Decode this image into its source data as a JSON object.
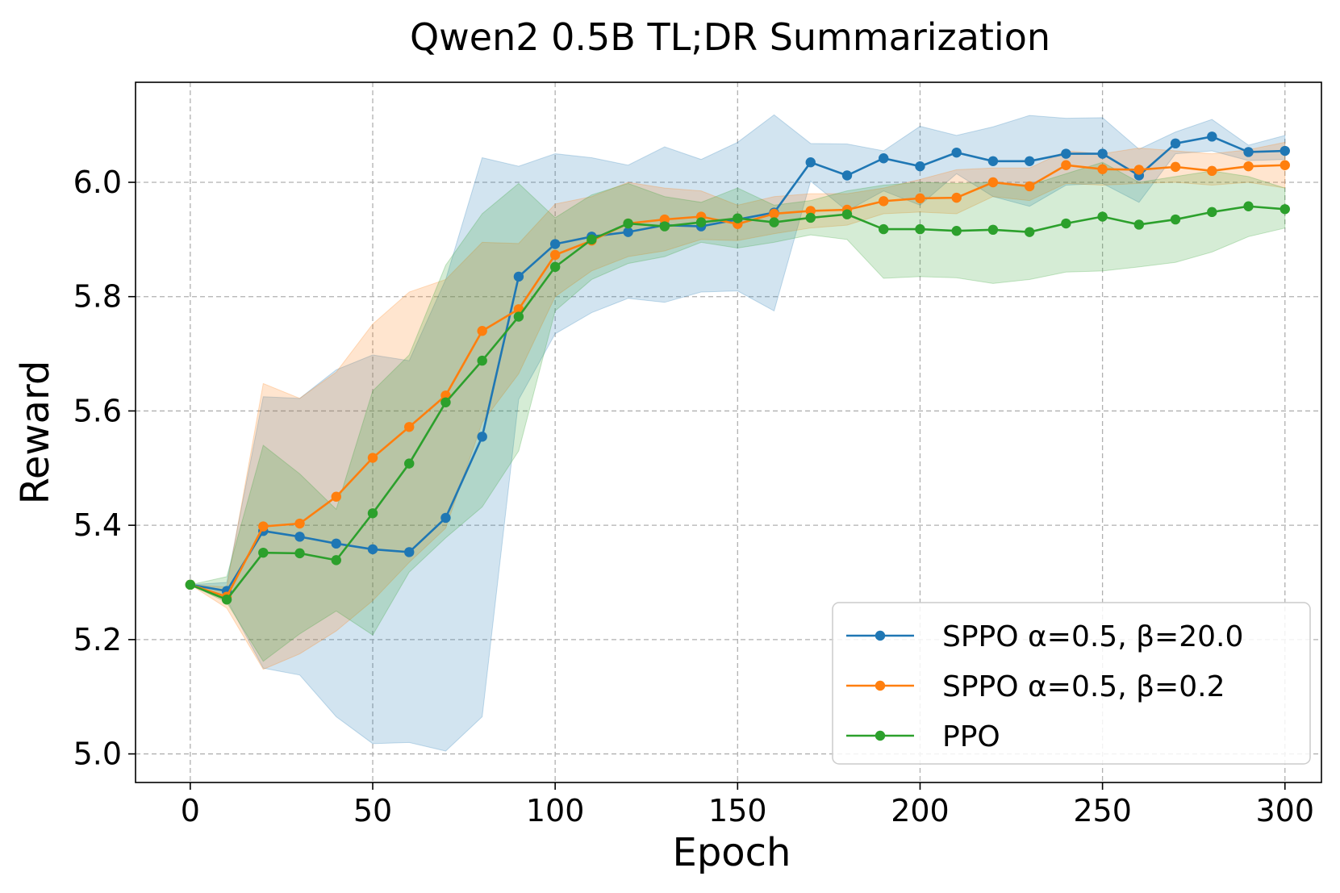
{
  "chart_data": {
    "type": "line",
    "title": "Qwen2 0.5B TL;DR Summarization",
    "xlabel": "Epoch",
    "ylabel": "Reward",
    "xlim": [
      -15,
      310
    ],
    "ylim": [
      4.95,
      6.175
    ],
    "xticks": [
      0,
      50,
      100,
      150,
      200,
      250,
      300
    ],
    "yticks": [
      5.0,
      5.2,
      5.4,
      5.6,
      5.8,
      6.0
    ],
    "xtick_labels": [
      "0",
      "50",
      "100",
      "150",
      "200",
      "250",
      "300"
    ],
    "ytick_labels": [
      "5.0",
      "5.2",
      "5.4",
      "5.6",
      "5.8",
      "6.0"
    ],
    "grid": true,
    "legend_position": "lower-right",
    "x": [
      0,
      10,
      20,
      30,
      40,
      50,
      60,
      70,
      80,
      90,
      100,
      110,
      120,
      130,
      140,
      150,
      160,
      170,
      180,
      190,
      200,
      210,
      220,
      230,
      240,
      250,
      260,
      270,
      280,
      290,
      300
    ],
    "series": [
      {
        "name": "SPPO α=0.5, β=20.0",
        "color": "#1f77b4",
        "values": [
          5.296,
          5.285,
          5.39,
          5.38,
          5.368,
          5.358,
          5.353,
          5.413,
          5.555,
          5.835,
          5.892,
          5.905,
          5.913,
          5.925,
          5.923,
          5.935,
          5.947,
          6.035,
          6.012,
          6.042,
          6.028,
          6.052,
          6.037,
          6.037,
          6.05,
          6.05,
          6.012,
          6.068,
          6.08,
          6.053,
          6.055
        ],
        "lower": [
          5.296,
          5.27,
          5.15,
          5.138,
          5.065,
          5.018,
          5.02,
          5.005,
          5.065,
          5.62,
          5.735,
          5.772,
          5.797,
          5.79,
          5.808,
          5.81,
          5.775,
          6.002,
          5.95,
          5.985,
          5.96,
          6.015,
          5.975,
          5.958,
          5.995,
          5.998,
          5.965,
          6.05,
          6.055,
          6.038,
          6.04
        ],
        "upper": [
          5.296,
          5.3,
          5.625,
          5.622,
          5.672,
          5.698,
          5.688,
          5.83,
          6.043,
          6.028,
          6.05,
          6.043,
          6.03,
          6.062,
          6.04,
          6.07,
          6.118,
          6.068,
          6.067,
          6.055,
          6.098,
          6.082,
          6.097,
          6.117,
          6.112,
          6.113,
          6.058,
          6.088,
          6.11,
          6.065,
          6.082
        ]
      },
      {
        "name": "SPPO α=0.5, β=0.2",
        "color": "#ff7f0e",
        "values": [
          5.296,
          5.275,
          5.398,
          5.403,
          5.45,
          5.518,
          5.572,
          5.627,
          5.74,
          5.778,
          5.873,
          5.898,
          5.928,
          5.935,
          5.94,
          5.927,
          5.945,
          5.95,
          5.952,
          5.967,
          5.972,
          5.973,
          6.0,
          5.993,
          6.03,
          6.023,
          6.022,
          6.027,
          6.02,
          6.028,
          6.03
        ],
        "lower": [
          5.296,
          5.255,
          5.148,
          5.175,
          5.215,
          5.268,
          5.335,
          5.395,
          5.58,
          5.665,
          5.8,
          5.845,
          5.87,
          5.88,
          5.9,
          5.898,
          5.91,
          5.92,
          5.925,
          5.945,
          5.948,
          5.945,
          5.975,
          5.968,
          5.998,
          5.995,
          5.998,
          6.0,
          5.995,
          6.0,
          5.99
        ],
        "upper": [
          5.296,
          5.292,
          5.648,
          5.622,
          5.668,
          5.752,
          5.808,
          5.83,
          5.895,
          5.893,
          5.962,
          5.975,
          6.0,
          5.99,
          5.985,
          5.96,
          5.975,
          5.98,
          5.98,
          5.99,
          6.005,
          6.022,
          6.025,
          6.025,
          6.055,
          6.05,
          6.06,
          6.055,
          6.05,
          6.057,
          6.07
        ]
      },
      {
        "name": "PPO",
        "color": "#2ca02c",
        "values": [
          5.296,
          5.27,
          5.352,
          5.351,
          5.339,
          5.421,
          5.508,
          5.615,
          5.688,
          5.765,
          5.852,
          5.9,
          5.928,
          5.923,
          5.93,
          5.937,
          5.93,
          5.938,
          5.944,
          5.918,
          5.918,
          5.915,
          5.917,
          5.913,
          5.928,
          5.94,
          5.926,
          5.935,
          5.948,
          5.958,
          5.953
        ],
        "lower": [
          5.296,
          5.265,
          5.162,
          5.21,
          5.25,
          5.208,
          5.318,
          5.378,
          5.432,
          5.53,
          5.775,
          5.83,
          5.858,
          5.87,
          5.895,
          5.885,
          5.895,
          5.908,
          5.9,
          5.832,
          5.835,
          5.833,
          5.823,
          5.83,
          5.843,
          5.845,
          5.852,
          5.86,
          5.878,
          5.905,
          5.92
        ],
        "upper": [
          5.296,
          5.31,
          5.54,
          5.49,
          5.428,
          5.635,
          5.698,
          5.855,
          5.945,
          5.998,
          5.938,
          5.978,
          5.998,
          5.975,
          5.965,
          5.99,
          5.96,
          5.968,
          5.985,
          5.995,
          6.0,
          5.998,
          6.0,
          5.995,
          6.015,
          6.035,
          6.0,
          6.01,
          6.02,
          6.01,
          5.99
        ]
      }
    ]
  }
}
